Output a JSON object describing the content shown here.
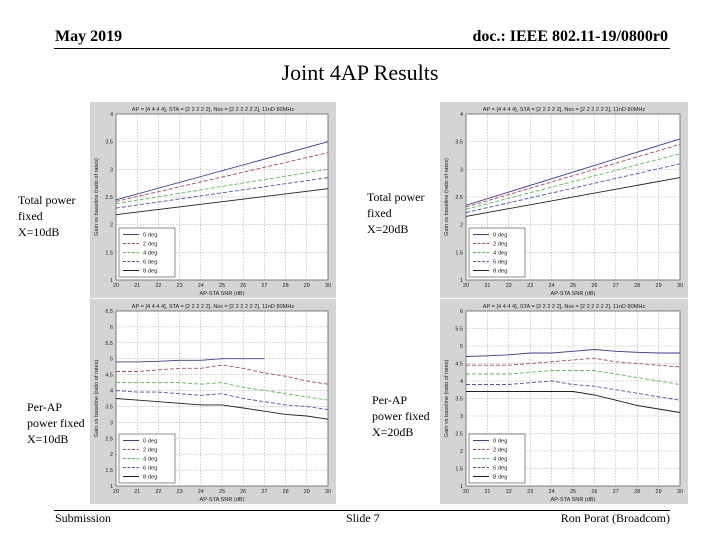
{
  "header": {
    "left": "May 2019",
    "right": "doc.: IEEE 802.11-19/0800r0"
  },
  "title": "Joint 4AP Results",
  "footer": {
    "left": "Submission",
    "center": "Slide 7",
    "right": "Ron Porat (Broadcom)"
  },
  "side_labels": [
    {
      "lines": [
        "Total power",
        "fixed",
        "X=10dB"
      ]
    },
    {
      "lines": [
        "Total power",
        "fixed",
        "X=20dB"
      ]
    },
    {
      "lines": [
        "Per-AP",
        "power fixed",
        "X=10dB"
      ]
    },
    {
      "lines": [
        "Per-AP",
        "power fixed",
        "X=20dB"
      ]
    }
  ],
  "colors": {
    "blue": "#3a3aa8",
    "red": "#c04060",
    "green": "#4cc84c",
    "purple": "#5050c8",
    "black": "#202020",
    "fig_bg": "#d4d4d4",
    "grid": "#9a9a9a"
  },
  "chart_data": [
    {
      "type": "line",
      "title": "AP = [4 4 4 4], STA = [2 2 2 2 2], Nss = [2 2 2 2 2 2], 11nD 80MHz",
      "xlabel": "AP-STA SNR (dB)",
      "ylabel": "Gain vs baseline (ratio of rates)",
      "xlim": [
        20,
        30
      ],
      "ylim": [
        1,
        4
      ],
      "xticks": [
        "20",
        "21",
        "22",
        "23",
        "24",
        "25",
        "26",
        "27",
        "28",
        "29",
        "30"
      ],
      "yticks": [
        "1",
        "1.5",
        "2",
        "2.5",
        "3",
        "3.5",
        "4"
      ],
      "grid": true,
      "legend_position": "bottom-left",
      "x": [
        20,
        30
      ],
      "series": [
        {
          "name": "0 deg",
          "color": "#3a3aa8",
          "dash": "solid",
          "values": [
            2.45,
            3.5
          ]
        },
        {
          "name": "2 deg",
          "color": "#c04060",
          "dash": "dashed",
          "values": [
            2.42,
            3.3
          ]
        },
        {
          "name": "4 deg",
          "color": "#4cc84c",
          "dash": "dashed",
          "values": [
            2.38,
            3.0
          ]
        },
        {
          "name": "6 deg",
          "color": "#5050c8",
          "dash": "dashed",
          "values": [
            2.3,
            2.85
          ]
        },
        {
          "name": "8 deg",
          "color": "#202020",
          "dash": "solid",
          "values": [
            2.18,
            2.65
          ]
        }
      ]
    },
    {
      "type": "line",
      "title": "AP = [4 4 4 4], STA = [2 2 2 2 2], Nss = [2 2 2 2 2 2], 11nD 80MHz",
      "xlabel": "AP-STA SNR (dB)",
      "ylabel": "Gain vs baseline (ratio of rates)",
      "xlim": [
        20,
        30
      ],
      "ylim": [
        1,
        4
      ],
      "xticks": [
        "20",
        "21",
        "22",
        "23",
        "24",
        "25",
        "26",
        "27",
        "28",
        "29",
        "30"
      ],
      "yticks": [
        "1",
        "1.5",
        "2",
        "2.5",
        "3",
        "3.5",
        "4"
      ],
      "grid": true,
      "legend_position": "bottom-left",
      "x": [
        20,
        30
      ],
      "series": [
        {
          "name": "0 deg",
          "color": "#3a3aa8",
          "dash": "solid",
          "values": [
            2.35,
            3.55
          ]
        },
        {
          "name": "2 deg",
          "color": "#c04060",
          "dash": "dashed",
          "values": [
            2.32,
            3.45
          ]
        },
        {
          "name": "4 deg",
          "color": "#4cc84c",
          "dash": "dashed",
          "values": [
            2.28,
            3.28
          ]
        },
        {
          "name": "6 deg",
          "color": "#5050c8",
          "dash": "dashed",
          "values": [
            2.22,
            3.1
          ]
        },
        {
          "name": "8 deg",
          "color": "#202020",
          "dash": "solid",
          "values": [
            2.15,
            2.85
          ]
        }
      ]
    },
    {
      "type": "line",
      "title": "AP = [4 4 4 4], STA = [2 2 2 2 2], Nss = [2 2 2 2 2 2], 11nD 80MHz",
      "xlabel": "AP-STA SNR (dB)",
      "ylabel": "Gain vs baseline (ratio of rates)",
      "xlim": [
        20,
        30
      ],
      "ylim": [
        1,
        6.5
      ],
      "xticks": [
        "20",
        "21",
        "22",
        "23",
        "24",
        "25",
        "26",
        "27",
        "28",
        "29",
        "30"
      ],
      "yticks": [
        "1",
        "1.5",
        "2",
        "2.5",
        "3",
        "3.5",
        "4",
        "4.5",
        "5",
        "5.5",
        "6",
        "6.5"
      ],
      "grid": true,
      "legend_position": "bottom-left",
      "x": [
        20,
        21,
        22,
        23,
        24,
        25,
        26,
        27,
        28,
        29,
        30
      ],
      "series": [
        {
          "name": "0 deg",
          "color": "#3a3aa8",
          "dash": "solid",
          "values": [
            4.9,
            4.9,
            4.92,
            4.95,
            4.95,
            5.0,
            5.0,
            5.0,
            null,
            null,
            null
          ]
        },
        {
          "name": "2 deg",
          "color": "#c04060",
          "dash": "dashed",
          "values": [
            4.6,
            4.6,
            4.65,
            4.7,
            4.7,
            4.8,
            4.7,
            4.55,
            4.45,
            4.3,
            4.2
          ]
        },
        {
          "name": "4 deg",
          "color": "#4cc84c",
          "dash": "dashed",
          "values": [
            4.25,
            4.25,
            4.25,
            4.25,
            4.2,
            4.25,
            4.1,
            4.0,
            3.9,
            3.8,
            3.7
          ]
        },
        {
          "name": "6 deg",
          "color": "#5050c8",
          "dash": "dashed",
          "values": [
            4.0,
            3.95,
            3.95,
            3.9,
            3.85,
            3.9,
            3.75,
            3.65,
            3.55,
            3.5,
            3.4
          ]
        },
        {
          "name": "8 deg",
          "color": "#202020",
          "dash": "solid",
          "values": [
            3.75,
            3.7,
            3.65,
            3.6,
            3.55,
            3.55,
            3.45,
            3.35,
            3.25,
            3.2,
            3.1
          ]
        }
      ]
    },
    {
      "type": "line",
      "title": "AP = [4 4 4 4], STA = [2 2 2 2 2], Nss = [2 2 2 2 2 2], 11nD 80MHz",
      "xlabel": "AP-STA SNR (dB)",
      "ylabel": "Gain vs baseline (ratio of rates)",
      "xlim": [
        20,
        30
      ],
      "ylim": [
        1,
        6
      ],
      "xticks": [
        "20",
        "21",
        "22",
        "23",
        "24",
        "25",
        "26",
        "27",
        "28",
        "29",
        "30"
      ],
      "yticks": [
        "1",
        "1.5",
        "2",
        "2.5",
        "3",
        "3.5",
        "4",
        "4.5",
        "5",
        "5.5",
        "6"
      ],
      "grid": true,
      "legend_position": "bottom-left",
      "x": [
        20,
        21,
        22,
        23,
        24,
        25,
        26,
        27,
        28,
        29,
        30
      ],
      "series": [
        {
          "name": "0 deg",
          "color": "#3a3aa8",
          "dash": "solid",
          "values": [
            4.7,
            4.72,
            4.75,
            4.8,
            4.8,
            4.85,
            4.9,
            4.85,
            4.82,
            4.8,
            4.8
          ]
        },
        {
          "name": "2 deg",
          "color": "#c04060",
          "dash": "dashed",
          "values": [
            4.45,
            4.45,
            4.45,
            4.5,
            4.55,
            4.6,
            4.65,
            4.55,
            4.5,
            4.45,
            4.4
          ]
        },
        {
          "name": "4 deg",
          "color": "#4cc84c",
          "dash": "dashed",
          "values": [
            4.2,
            4.2,
            4.2,
            4.25,
            4.3,
            4.3,
            4.3,
            4.2,
            4.1,
            4.0,
            3.9
          ]
        },
        {
          "name": "6 deg",
          "color": "#5050c8",
          "dash": "dashed",
          "values": [
            3.9,
            3.9,
            3.9,
            3.95,
            4.0,
            3.9,
            3.85,
            3.75,
            3.65,
            3.55,
            3.45
          ]
        },
        {
          "name": "8 deg",
          "color": "#202020",
          "dash": "solid",
          "values": [
            3.7,
            3.7,
            3.7,
            3.7,
            3.7,
            3.7,
            3.6,
            3.45,
            3.3,
            3.2,
            3.1
          ]
        }
      ]
    }
  ]
}
